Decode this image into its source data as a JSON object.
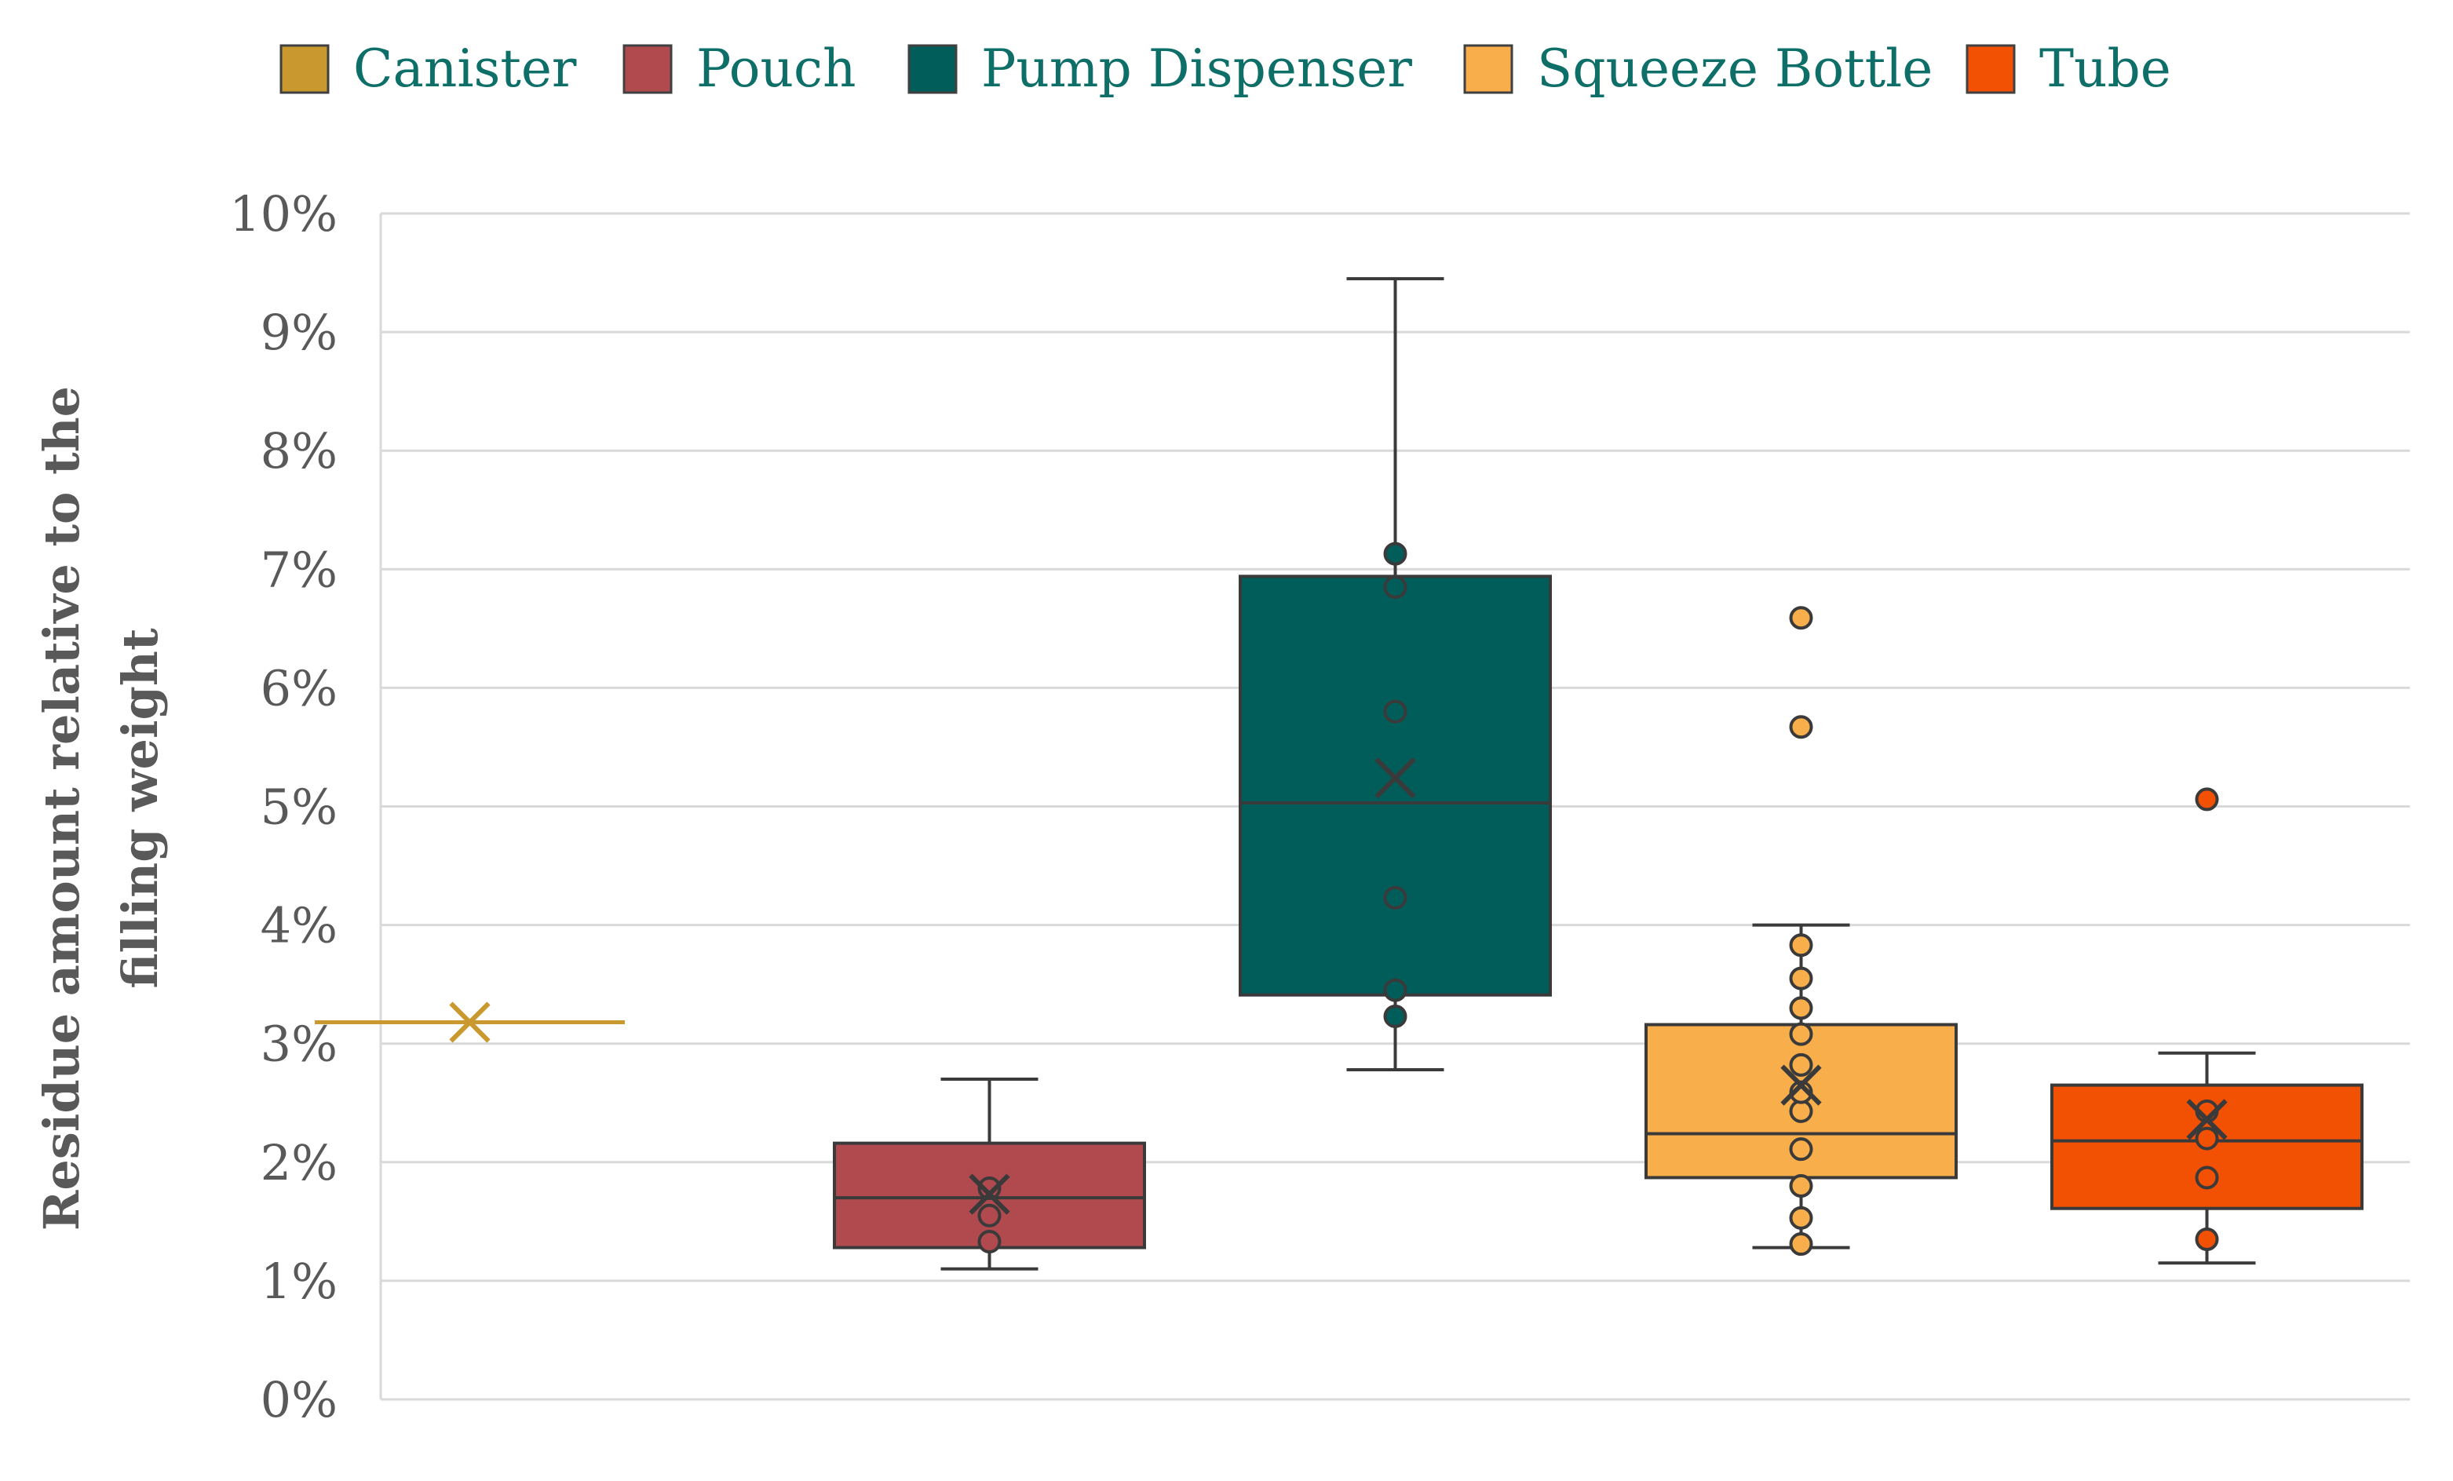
{
  "chart_data": {
    "type": "box",
    "title": "",
    "xlabel": "",
    "ylabel_lines": [
      "Residue amount relative to the",
      "filling weight"
    ],
    "ylim": [
      0,
      0.1
    ],
    "y_ticks": [
      {
        "value": 0.0,
        "label": "0%"
      },
      {
        "value": 0.01,
        "label": "1%"
      },
      {
        "value": 0.02,
        "label": "2%"
      },
      {
        "value": 0.03,
        "label": "3%"
      },
      {
        "value": 0.04,
        "label": "4%"
      },
      {
        "value": 0.05,
        "label": "5%"
      },
      {
        "value": 0.06,
        "label": "6%"
      },
      {
        "value": 0.07,
        "label": "7%"
      },
      {
        "value": 0.08,
        "label": "8%"
      },
      {
        "value": 0.09,
        "label": "9%"
      },
      {
        "value": 0.1,
        "label": "10%"
      }
    ],
    "grid": true,
    "legend_position": "top",
    "series": [
      {
        "name": "Canister",
        "color": "#c9982e",
        "min": 0.0318,
        "q1": 0.0318,
        "median": 0.0318,
        "q3": 0.0318,
        "max": 0.0318,
        "mean": 0.0318,
        "points": []
      },
      {
        "name": "Pouch",
        "color": "#b04a4f",
        "min": 0.011,
        "q1": 0.0128,
        "median": 0.017,
        "q3": 0.0216,
        "max": 0.027,
        "mean": 0.0173,
        "points": [
          0.0133,
          0.0155,
          0.0178
        ]
      },
      {
        "name": "Pump Dispenser",
        "color": "#015d5a",
        "min": 0.0278,
        "q1": 0.0341,
        "median": 0.0503,
        "q3": 0.0694,
        "max": 0.0945,
        "mean": 0.0524,
        "points": [
          0.0323,
          0.0345,
          0.0423,
          0.058,
          0.0685,
          0.0713
        ]
      },
      {
        "name": "Squeeze Bottle",
        "color": "#f7ae4b",
        "min": 0.0128,
        "q1": 0.0187,
        "median": 0.0224,
        "q3": 0.0316,
        "max": 0.04,
        "mean": 0.0265,
        "points": [
          0.0131,
          0.0153,
          0.018,
          0.0211,
          0.0243,
          0.0259,
          0.0282,
          0.0308,
          0.033,
          0.0355,
          0.0383,
          0.0567,
          0.0659
        ]
      },
      {
        "name": "Tube",
        "color": "#f25104",
        "min": 0.0115,
        "q1": 0.0161,
        "median": 0.0218,
        "q3": 0.0265,
        "max": 0.0292,
        "mean": 0.0236,
        "points": [
          0.0135,
          0.0187,
          0.022,
          0.0243,
          0.0506
        ]
      }
    ]
  }
}
